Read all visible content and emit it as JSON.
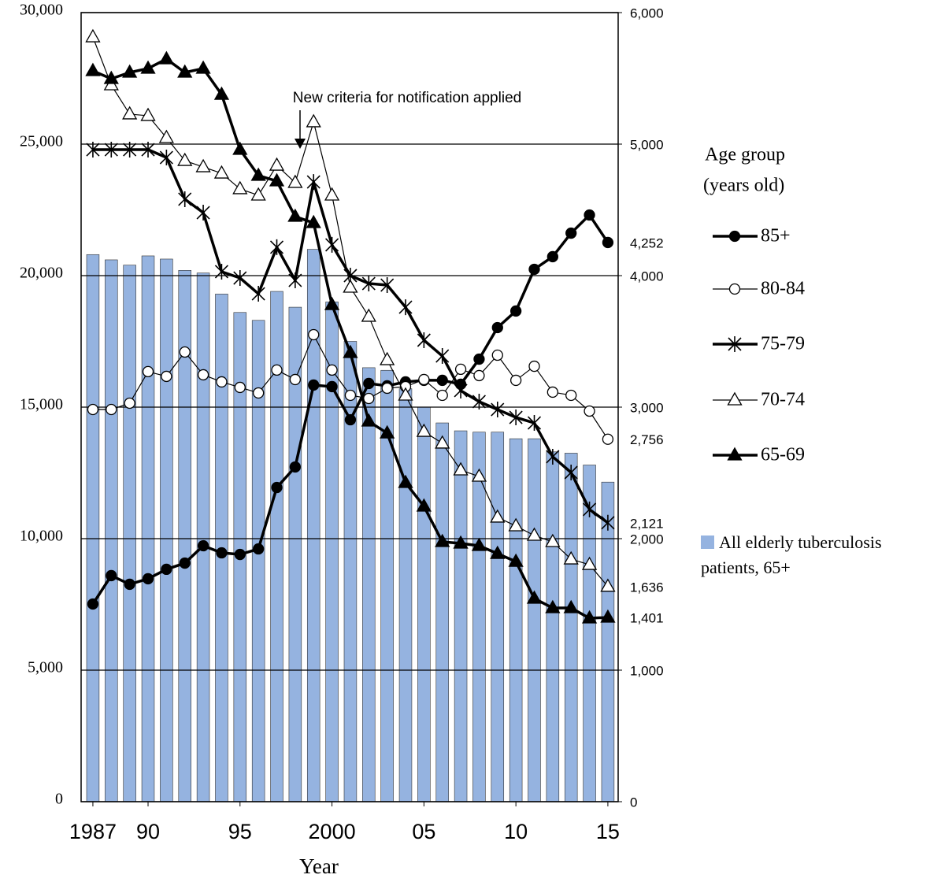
{
  "chart_data": {
    "type": "bar",
    "annotation": "New criteria for notification applied",
    "x_label": "Year",
    "legend_title": [
      "Age group",
      "(years old)"
    ],
    "x": [
      1987,
      1988,
      1989,
      1990,
      1991,
      1992,
      1993,
      1994,
      1995,
      1996,
      1997,
      1998,
      1999,
      2000,
      2001,
      2002,
      2003,
      2004,
      2005,
      2006,
      2007,
      2008,
      2009,
      2010,
      2011,
      2012,
      2013,
      2014,
      2015
    ],
    "xlim": [
      1986.36,
      2015.56
    ],
    "xticks": [
      1987,
      {
        "value": 1990,
        "label": "90"
      },
      {
        "value": 1995,
        "label": "95"
      },
      2000,
      {
        "value": 2005,
        "label": "05"
      },
      {
        "value": 2010,
        "label": "10"
      },
      {
        "value": 2015,
        "label": "15"
      }
    ],
    "ylim": [
      0,
      30000
    ],
    "yticks": [
      0,
      {
        "value": 5000,
        "label": "5,000"
      },
      {
        "value": 10000,
        "label": "10,000"
      },
      {
        "value": 15000,
        "label": "15,000"
      },
      {
        "value": 20000,
        "label": "20,000"
      },
      {
        "value": 25000,
        "label": "25,000"
      },
      {
        "value": 30000,
        "label": "30,000"
      }
    ],
    "y2lim": [
      0,
      6000
    ],
    "y2ticks": [
      0,
      {
        "value": 1000,
        "label": "1,000"
      },
      {
        "value": 2000,
        "label": "2,000"
      },
      {
        "value": 3000,
        "label": "3,000"
      },
      {
        "value": 4000,
        "label": "4,000"
      },
      {
        "value": 5000,
        "label": "5,000"
      },
      {
        "value": 6000,
        "label": "6,000"
      }
    ],
    "grid": true,
    "series": [
      {
        "name": "85+",
        "type": "line",
        "axis": "y2",
        "color": "#000000",
        "marker": "circle-filled",
        "line_width": 3.5,
        "values": [
          1503,
          1719,
          1653,
          1695,
          1767,
          1814,
          1946,
          1892,
          1880,
          1922,
          2389,
          2545,
          3168,
          3156,
          2904,
          3180,
          3162,
          3192,
          3204,
          3204,
          3174,
          3365,
          3605,
          3731,
          4048,
          4144,
          4323,
          4461,
          4252
        ],
        "value_labels": [
          null,
          null,
          null,
          null,
          null,
          null,
          null,
          null,
          null,
          null,
          null,
          null,
          null,
          null,
          null,
          null,
          null,
          null,
          null,
          null,
          null,
          null,
          null,
          null,
          null,
          null,
          null,
          null,
          "4,252"
        ]
      },
      {
        "name": "80-84",
        "type": "line",
        "axis": "y2",
        "color": "#000000",
        "marker": "circle-open",
        "line_width": 1.2,
        "values": [
          2982,
          2982,
          3030,
          3270,
          3234,
          3419,
          3246,
          3192,
          3150,
          3108,
          3282,
          3210,
          3551,
          3282,
          3090,
          3066,
          3144,
          3156,
          3210,
          3090,
          3288,
          3240,
          3395,
          3204,
          3311,
          3114,
          3090,
          2970,
          2756
        ],
        "value_labels": [
          null,
          null,
          null,
          null,
          null,
          null,
          null,
          null,
          null,
          null,
          null,
          null,
          null,
          null,
          null,
          null,
          null,
          null,
          null,
          null,
          null,
          null,
          null,
          null,
          null,
          null,
          null,
          null,
          "2,756"
        ]
      },
      {
        "name": "75-79",
        "type": "line",
        "axis": "y2",
        "color": "#000000",
        "marker": "star",
        "line_width": 3.5,
        "values": [
          4958,
          4958,
          4958,
          4958,
          4898,
          4581,
          4479,
          4030,
          3982,
          3862,
          4216,
          3964,
          4712,
          4234,
          4000,
          3940,
          3928,
          3760,
          3509,
          3389,
          3126,
          3042,
          2982,
          2922,
          2880,
          2623,
          2503,
          2222,
          2121
        ],
        "value_labels": [
          null,
          null,
          null,
          null,
          null,
          null,
          null,
          null,
          null,
          null,
          null,
          null,
          null,
          null,
          null,
          null,
          null,
          null,
          null,
          null,
          null,
          null,
          null,
          null,
          null,
          null,
          null,
          null,
          "2,121"
        ]
      },
      {
        "name": "70-74",
        "type": "line",
        "axis": "y2",
        "color": "#000000",
        "marker": "triangle-open",
        "line_width": 1.2,
        "values": [
          5814,
          5449,
          5228,
          5216,
          5048,
          4874,
          4826,
          4778,
          4659,
          4611,
          4838,
          4707,
          5168,
          4611,
          3910,
          3689,
          3359,
          3090,
          2814,
          2725,
          2521,
          2473,
          2162,
          2096,
          2024,
          1976,
          1844,
          1802,
          1636
        ],
        "value_labels": [
          null,
          null,
          null,
          null,
          null,
          null,
          null,
          null,
          null,
          null,
          null,
          null,
          null,
          null,
          null,
          null,
          null,
          null,
          null,
          null,
          null,
          null,
          null,
          null,
          null,
          null,
          null,
          null,
          "1,636"
        ]
      },
      {
        "name": "65-69",
        "type": "line",
        "axis": "y2",
        "color": "#000000",
        "marker": "triangle-filled",
        "line_width": 3.5,
        "values": [
          5557,
          5497,
          5545,
          5575,
          5647,
          5545,
          5575,
          5377,
          4958,
          4761,
          4719,
          4449,
          4401,
          3778,
          3413,
          2892,
          2802,
          2425,
          2246,
          1976,
          1964,
          1946,
          1886,
          1826,
          1545,
          1473,
          1473,
          1395,
          1401
        ],
        "value_labels": [
          null,
          null,
          null,
          null,
          null,
          null,
          null,
          null,
          null,
          null,
          null,
          null,
          null,
          null,
          null,
          null,
          null,
          null,
          null,
          null,
          null,
          null,
          null,
          null,
          null,
          null,
          null,
          null,
          "1,401"
        ]
      },
      {
        "name": "All elderly tuberculosis patients, 65+",
        "type": "bar",
        "color": "#95b3e0",
        "values": [
          20800,
          20600,
          20400,
          20750,
          20630,
          20200,
          20100,
          19300,
          18600,
          18300,
          19400,
          18800,
          21000,
          19000,
          17500,
          16500,
          16400,
          15700,
          15000,
          14400,
          14100,
          14050,
          14050,
          13800,
          13800,
          13300,
          13250,
          12800,
          12150
        ]
      }
    ]
  }
}
